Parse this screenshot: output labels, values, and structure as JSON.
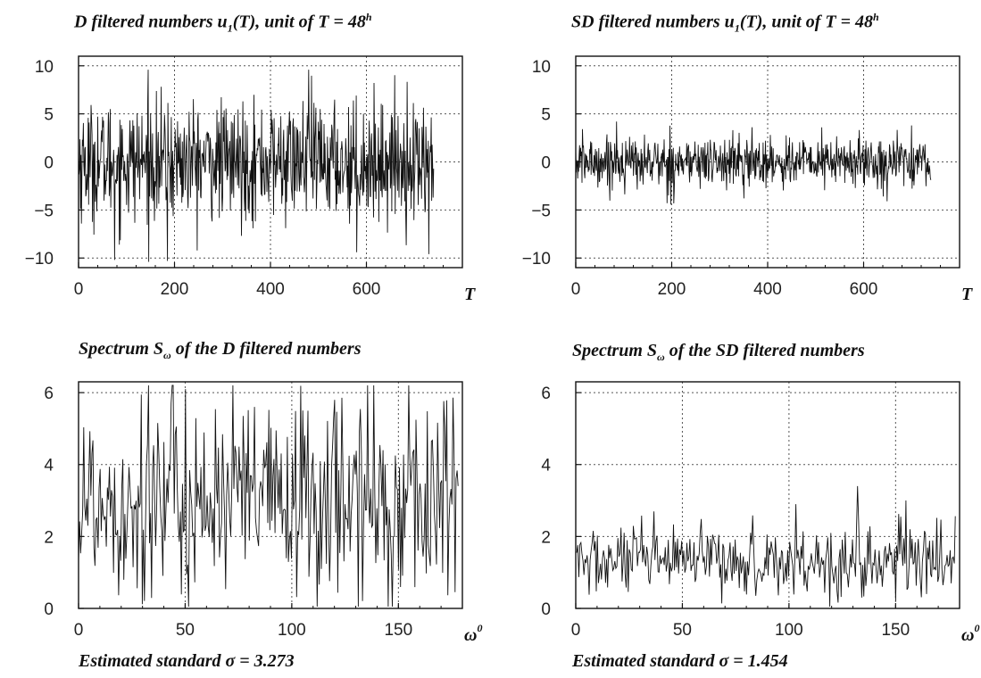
{
  "chart_data": [
    {
      "type": "line",
      "title_parts": {
        "pre": "D filtered numbers u",
        "sub": "1",
        "mid": "(T), unit of T = 48",
        "sup": "h"
      },
      "xlabel": "T",
      "xlim": [
        0,
        800
      ],
      "ylim": [
        -11,
        11
      ],
      "xticks": [
        0,
        200,
        400,
        600
      ],
      "yticks": [
        -10,
        -5,
        0,
        5,
        10
      ],
      "n_points": 740,
      "amplitude_std": 3.273,
      "series": [
        {
          "values_description_note": "",
          "peaks": [
            {
              "x": 75,
              "y": -10.2
            },
            {
              "x": 145,
              "y": 9.6
            },
            {
              "x": 185,
              "y": -10.3
            },
            {
              "x": 480,
              "y": 9.6
            },
            {
              "x": 580,
              "y": -9.4
            },
            {
              "x": 730,
              "y": -9.6
            }
          ]
        }
      ]
    },
    {
      "type": "line",
      "title_parts": {
        "pre": "SD filtered numbers u",
        "sub": "1",
        "mid": "(T), unit of T = 48",
        "sup": "h"
      },
      "xlabel": "T",
      "xlim": [
        0,
        800
      ],
      "ylim": [
        -11,
        11
      ],
      "xticks": [
        0,
        200,
        400,
        600
      ],
      "yticks": [
        -10,
        -5,
        0,
        5,
        10
      ],
      "n_points": 740,
      "amplitude_std": 1.454,
      "series": [
        {
          "values_description_note": "",
          "peaks": [
            {
              "x": 85,
              "y": 4.2
            },
            {
              "x": 190,
              "y": -4.3
            },
            {
              "x": 350,
              "y": -3.8
            },
            {
              "x": 700,
              "y": 3.8
            }
          ]
        }
      ]
    },
    {
      "type": "line",
      "title_parts": {
        "pre": "Spectrum S",
        "sub": "ω",
        "post": " of the D filtered numbers"
      },
      "xlabel": "ω",
      "xlabel_sup": "0",
      "xlim": [
        0,
        180
      ],
      "ylim": [
        0,
        6.3
      ],
      "xticks": [
        0,
        50,
        100,
        150
      ],
      "yticks": [
        0,
        2,
        4,
        6
      ],
      "n_points": 370,
      "mean_level": 3.0,
      "series": [
        {
          "values_description_note": "",
          "peaks": [
            {
              "x": 33,
              "y": 6.2
            },
            {
              "x": 50,
              "y": 6.1
            },
            {
              "x": 120,
              "y": 5.8
            },
            {
              "x": 155,
              "y": 6.2
            },
            {
              "x": 145,
              "y": 0.05
            }
          ]
        }
      ]
    },
    {
      "type": "line",
      "title_parts": {
        "pre": "Spectrum S",
        "sub": "ω",
        "post": " of the SD filtered numbers"
      },
      "xlabel": "ω",
      "xlabel_sup": "0",
      "xlim": [
        0,
        180
      ],
      "ylim": [
        0,
        6.3
      ],
      "xticks": [
        0,
        50,
        100,
        150
      ],
      "yticks": [
        0,
        2,
        4,
        6
      ],
      "n_points": 370,
      "mean_level": 1.3,
      "series": [
        {
          "values_description_note": "",
          "peaks": [
            {
              "x": 132,
              "y": 3.4
            },
            {
              "x": 103,
              "y": 2.9
            },
            {
              "x": 155,
              "y": 3.0
            }
          ]
        }
      ]
    }
  ],
  "footers": {
    "left": "Estimated standard σ = 3.273",
    "right": "Estimated standard σ = 1.454"
  }
}
